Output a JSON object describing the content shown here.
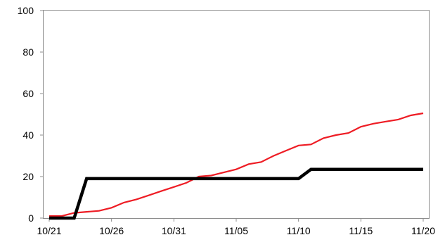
{
  "chart_data": {
    "type": "line",
    "title": "",
    "xlabel": "",
    "ylabel": "",
    "x_tick_labels": [
      "10/21",
      "10/26",
      "10/31",
      "11/05",
      "11/10",
      "11/15",
      "11/20"
    ],
    "x_tick_dates": [
      "2019-10-21",
      "2019-10-26",
      "2019-10-31",
      "2019-11-05",
      "2019-11-10",
      "2019-11-15",
      "2019-11-20"
    ],
    "xlim": [
      "2019-10-21",
      "2019-11-20"
    ],
    "y_ticks": [
      0,
      20,
      40,
      60,
      80,
      100
    ],
    "ylim": [
      0,
      100
    ],
    "grid": false,
    "legend": "none",
    "series": [
      {
        "color": "#ee1c24",
        "points": [
          [
            "2019-10-21",
            1
          ],
          [
            "2019-10-22",
            1
          ],
          [
            "2019-10-23",
            2.5
          ],
          [
            "2019-10-24",
            3
          ],
          [
            "2019-10-25",
            3.5
          ],
          [
            "2019-10-26",
            5
          ],
          [
            "2019-10-27",
            7.5
          ],
          [
            "2019-10-28",
            9
          ],
          [
            "2019-10-29",
            11
          ],
          [
            "2019-10-30",
            13
          ],
          [
            "2019-10-31",
            15
          ],
          [
            "2019-11-01",
            17
          ],
          [
            "2019-11-02",
            20
          ],
          [
            "2019-11-03",
            20.5
          ],
          [
            "2019-11-04",
            22
          ],
          [
            "2019-11-05",
            23.5
          ],
          [
            "2019-11-06",
            26
          ],
          [
            "2019-11-07",
            27
          ],
          [
            "2019-11-08",
            30
          ],
          [
            "2019-11-09",
            32.5
          ],
          [
            "2019-11-10",
            35
          ],
          [
            "2019-11-11",
            35.5
          ],
          [
            "2019-11-12",
            38.5
          ],
          [
            "2019-11-13",
            40
          ],
          [
            "2019-11-14",
            41
          ],
          [
            "2019-11-15",
            44
          ],
          [
            "2019-11-16",
            45.5
          ],
          [
            "2019-11-17",
            46.5
          ],
          [
            "2019-11-18",
            47.5
          ],
          [
            "2019-11-19",
            49.5
          ],
          [
            "2019-11-20",
            50.5
          ]
        ]
      },
      {
        "color": "#000000",
        "points": [
          [
            "2019-10-21",
            0
          ],
          [
            "2019-10-23",
            0
          ],
          [
            "2019-10-24",
            19
          ],
          [
            "2019-11-10",
            19
          ],
          [
            "2019-11-11",
            23.5
          ],
          [
            "2019-11-20",
            23.5
          ]
        ]
      }
    ]
  }
}
